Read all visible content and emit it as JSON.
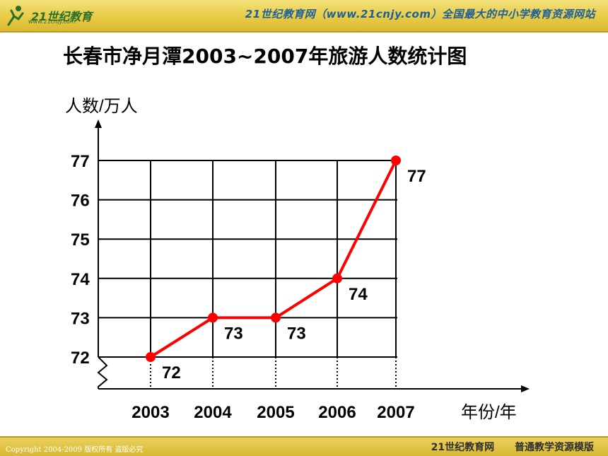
{
  "header": {
    "logo_text": "21世纪教育",
    "logo_sub": "www.21cnjy.com",
    "tagline": "21世纪教育网（www.21cnjy.com）全国最大的中小学教育资源网站"
  },
  "footer": {
    "copyright": "Copyright 2004-2009 版权所有 盗版必究",
    "site": "21世纪教育网",
    "slogan": "普通教学资源模版"
  },
  "colors": {
    "line": "#ff0000",
    "grid": "#000000",
    "bar": "#e2c540"
  },
  "chart_data": {
    "type": "line",
    "title": "长春市净月潭2003~2007年旅游人数统计图",
    "xlabel": "年份/年",
    "ylabel": "人数/万人",
    "categories": [
      "2003",
      "2004",
      "2005",
      "2006",
      "2007"
    ],
    "values": [
      72,
      73,
      73,
      74,
      77
    ],
    "data_labels": [
      "72",
      "73",
      "73",
      "74",
      "77"
    ],
    "yticks": [
      "72",
      "73",
      "74",
      "75",
      "76",
      "77"
    ],
    "ylim": [
      72,
      77
    ],
    "axis_break": true,
    "grid": true,
    "legend": "none"
  }
}
